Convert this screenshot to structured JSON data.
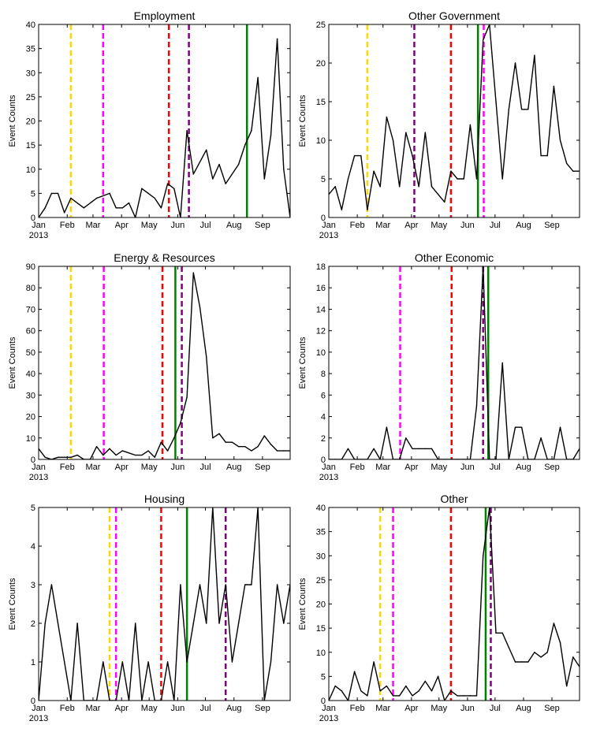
{
  "chart_data": [
    {
      "type": "line",
      "title": "Employment",
      "ylabel": "Event Counts",
      "ylim": [
        0,
        40
      ],
      "yticks": [
        0,
        5,
        10,
        15,
        20,
        25,
        30,
        35,
        40
      ],
      "x_domain": [
        1,
        40
      ],
      "xticks": [
        {
          "x": 1,
          "label": "Jan"
        },
        {
          "x": 5.43,
          "label": "Feb"
        },
        {
          "x": 9.43,
          "label": "Mar"
        },
        {
          "x": 13.86,
          "label": "Apr"
        },
        {
          "x": 18.14,
          "label": "May"
        },
        {
          "x": 22.57,
          "label": "Jun"
        },
        {
          "x": 26.86,
          "label": "Jul"
        },
        {
          "x": 31.29,
          "label": "Aug"
        },
        {
          "x": 35.71,
          "label": "Sep"
        }
      ],
      "year_label": "2013",
      "series": [
        {
          "name": "Event Counts",
          "color": "#000000",
          "x": [
            1,
            2,
            3,
            4,
            5,
            6,
            8,
            10,
            12,
            13,
            14,
            15,
            16,
            17,
            18,
            19,
            20,
            21,
            22,
            23,
            24,
            25,
            27,
            28,
            29,
            30,
            32,
            33,
            34,
            35,
            36,
            37,
            38,
            39,
            40
          ],
          "y": [
            0,
            2,
            5,
            5,
            1,
            4,
            2,
            4,
            5,
            2,
            2,
            3,
            0,
            6,
            5,
            4,
            2,
            7,
            6,
            0,
            18,
            9,
            14,
            8,
            11,
            7,
            11,
            15,
            18,
            29,
            8,
            17,
            37,
            10,
            0
          ]
        }
      ],
      "vlines": [
        {
          "x": 6.0,
          "color": "#FFD700",
          "style": "dashed"
        },
        {
          "x": 11.0,
          "color": "#FF00FF",
          "style": "dashed"
        },
        {
          "x": 21.2,
          "color": "#FF0000",
          "style": "dashed"
        },
        {
          "x": 24.3,
          "color": "#800080",
          "style": "dashed"
        },
        {
          "x": 33.3,
          "color": "#008000",
          "style": "solid"
        }
      ]
    },
    {
      "type": "line",
      "title": "Other Government",
      "ylabel": "Event Counts",
      "ylim": [
        0,
        25
      ],
      "yticks": [
        0,
        5,
        10,
        15,
        20,
        25
      ],
      "x_domain": [
        1,
        40
      ],
      "xticks": [
        {
          "x": 1,
          "label": "Jan"
        },
        {
          "x": 5.43,
          "label": "Feb"
        },
        {
          "x": 9.43,
          "label": "Mar"
        },
        {
          "x": 13.86,
          "label": "Apr"
        },
        {
          "x": 18.14,
          "label": "May"
        },
        {
          "x": 22.57,
          "label": "Jun"
        },
        {
          "x": 26.86,
          "label": "Jul"
        },
        {
          "x": 31.29,
          "label": "Aug"
        },
        {
          "x": 35.71,
          "label": "Sep"
        }
      ],
      "year_label": "2013",
      "series": [
        {
          "name": "Event Counts",
          "color": "#000000",
          "x": [
            1,
            2,
            3,
            4,
            5,
            6,
            7,
            8,
            9,
            10,
            11,
            12,
            13,
            14,
            15,
            16,
            17,
            18,
            19,
            20,
            21,
            22,
            23,
            24,
            25,
            26,
            27,
            28,
            29,
            30,
            31,
            32,
            33,
            34,
            35,
            36,
            37,
            38,
            39,
            40
          ],
          "y": [
            3,
            4,
            1,
            5,
            8,
            8,
            1,
            6,
            4,
            13,
            10,
            4,
            11,
            8,
            4,
            11,
            4,
            3,
            2,
            6,
            5,
            5,
            12,
            5,
            23,
            25,
            15,
            5,
            14,
            20,
            14,
            14,
            21,
            8,
            8,
            17,
            10,
            7,
            6,
            6
          ]
        }
      ],
      "vlines": [
        {
          "x": 7.0,
          "color": "#FFD700",
          "style": "dashed"
        },
        {
          "x": 14.3,
          "color": "#800080",
          "style": "dashed"
        },
        {
          "x": 20.0,
          "color": "#FF0000",
          "style": "dashed"
        },
        {
          "x": 24.2,
          "color": "#008000",
          "style": "solid"
        },
        {
          "x": 25.1,
          "color": "#FF00FF",
          "style": "dashed"
        }
      ]
    },
    {
      "type": "line",
      "title": "Energy & Resources",
      "ylabel": "Event Counts",
      "ylim": [
        0,
        90
      ],
      "yticks": [
        0,
        10,
        20,
        30,
        40,
        50,
        60,
        70,
        80,
        90
      ],
      "x_domain": [
        1,
        40
      ],
      "xticks": [
        {
          "x": 1,
          "label": "Jan"
        },
        {
          "x": 5.43,
          "label": "Feb"
        },
        {
          "x": 9.43,
          "label": "Mar"
        },
        {
          "x": 13.86,
          "label": "Apr"
        },
        {
          "x": 18.14,
          "label": "May"
        },
        {
          "x": 22.57,
          "label": "Jun"
        },
        {
          "x": 26.86,
          "label": "Jul"
        },
        {
          "x": 31.29,
          "label": "Aug"
        },
        {
          "x": 35.71,
          "label": "Sep"
        }
      ],
      "year_label": "2013",
      "series": [
        {
          "name": "Event Counts",
          "color": "#000000",
          "x": [
            1,
            2,
            3,
            4,
            5,
            6,
            7,
            8,
            9,
            10,
            11,
            12,
            13,
            14,
            15,
            16,
            17,
            18,
            19,
            20,
            21,
            22,
            23,
            24,
            25,
            26,
            27,
            28,
            29,
            30,
            31,
            32,
            33,
            34,
            35,
            36,
            37,
            38,
            39,
            40
          ],
          "y": [
            5,
            1,
            0,
            1,
            1,
            1,
            2,
            0,
            0,
            6,
            2,
            5,
            2,
            4,
            3,
            2,
            2,
            4,
            1,
            8,
            4,
            10,
            17,
            29,
            87,
            71,
            48,
            10,
            12,
            8,
            8,
            6,
            6,
            4,
            6,
            11,
            7,
            4,
            4,
            4
          ]
        }
      ],
      "vlines": [
        {
          "x": 6.0,
          "color": "#FFD700",
          "style": "dashed"
        },
        {
          "x": 11.1,
          "color": "#FF00FF",
          "style": "dashed"
        },
        {
          "x": 20.2,
          "color": "#FF0000",
          "style": "dashed"
        },
        {
          "x": 22.2,
          "color": "#008000",
          "style": "solid"
        },
        {
          "x": 23.2,
          "color": "#800080",
          "style": "dashed"
        }
      ]
    },
    {
      "type": "line",
      "title": "Other Economic",
      "ylabel": "Event Counts",
      "ylim": [
        0,
        18
      ],
      "yticks": [
        0,
        2,
        4,
        6,
        8,
        10,
        12,
        14,
        16,
        18
      ],
      "x_domain": [
        1,
        40
      ],
      "xticks": [
        {
          "x": 1,
          "label": "Jan"
        },
        {
          "x": 5.43,
          "label": "Feb"
        },
        {
          "x": 9.43,
          "label": "Mar"
        },
        {
          "x": 13.86,
          "label": "Apr"
        },
        {
          "x": 18.14,
          "label": "May"
        },
        {
          "x": 22.57,
          "label": "Jun"
        },
        {
          "x": 26.86,
          "label": "Jul"
        },
        {
          "x": 31.29,
          "label": "Aug"
        },
        {
          "x": 35.71,
          "label": "Sep"
        }
      ],
      "year_label": "2013",
      "series": [
        {
          "name": "Event Counts",
          "color": "#000000",
          "x": [
            1,
            2,
            3,
            4,
            5,
            6,
            7,
            8,
            9,
            10,
            11,
            12,
            13,
            14,
            15,
            16,
            17,
            18,
            19,
            20,
            21,
            22,
            23,
            24,
            25,
            26,
            27,
            28,
            29,
            30,
            31,
            32,
            33,
            34,
            35,
            36,
            37,
            38,
            39,
            40
          ],
          "y": [
            0,
            0,
            0,
            1,
            0,
            0,
            0,
            1,
            0,
            3,
            0,
            0,
            2,
            1,
            1,
            1,
            1,
            0,
            0,
            0,
            0,
            0,
            0,
            5,
            18,
            0,
            0,
            9,
            0,
            3,
            3,
            0,
            0,
            2,
            0,
            0,
            3,
            0,
            0,
            1
          ]
        }
      ],
      "vlines": [
        {
          "x": 12.1,
          "color": "#FF00FF",
          "style": "dashed"
        },
        {
          "x": 20.1,
          "color": "#FF0000",
          "style": "dashed"
        },
        {
          "x": 25.0,
          "color": "#800080",
          "style": "dashed"
        },
        {
          "x": 25.8,
          "color": "#008000",
          "style": "solid"
        }
      ]
    },
    {
      "type": "line",
      "title": "Housing",
      "ylabel": "Event Counts",
      "ylim": [
        0,
        5
      ],
      "yticks": [
        0,
        1,
        2,
        3,
        4,
        5
      ],
      "x_domain": [
        1,
        40
      ],
      "xticks": [
        {
          "x": 1,
          "label": "Jan"
        },
        {
          "x": 5.43,
          "label": "Feb"
        },
        {
          "x": 9.43,
          "label": "Mar"
        },
        {
          "x": 13.86,
          "label": "Apr"
        },
        {
          "x": 18.14,
          "label": "May"
        },
        {
          "x": 22.57,
          "label": "Jun"
        },
        {
          "x": 26.86,
          "label": "Jul"
        },
        {
          "x": 31.29,
          "label": "Aug"
        },
        {
          "x": 35.71,
          "label": "Sep"
        }
      ],
      "year_label": "2013",
      "series": [
        {
          "name": "Event Counts",
          "color": "#000000",
          "x": [
            1,
            2,
            3,
            4,
            5,
            6,
            7,
            8,
            9,
            10,
            11,
            12,
            13,
            14,
            15,
            16,
            17,
            18,
            19,
            20,
            21,
            22,
            23,
            24,
            25,
            26,
            27,
            28,
            29,
            30,
            31,
            32,
            33,
            34,
            35,
            36,
            37,
            38,
            39,
            40
          ],
          "y": [
            0,
            2,
            3,
            2,
            1,
            0,
            2,
            0,
            0,
            0,
            1,
            0,
            0,
            1,
            0,
            2,
            0,
            1,
            0,
            0,
            1,
            0,
            3,
            1,
            2,
            3,
            2,
            5,
            2,
            3,
            1,
            2,
            3,
            3,
            5,
            0,
            1,
            3,
            2,
            3
          ]
        }
      ],
      "vlines": [
        {
          "x": 12.0,
          "color": "#FFD700",
          "style": "dashed"
        },
        {
          "x": 13.0,
          "color": "#FF00FF",
          "style": "dashed"
        },
        {
          "x": 20.0,
          "color": "#FF0000",
          "style": "dashed"
        },
        {
          "x": 24.0,
          "color": "#008000",
          "style": "solid"
        },
        {
          "x": 30.0,
          "color": "#800080",
          "style": "dashed"
        }
      ]
    },
    {
      "type": "line",
      "title": "Other",
      "ylabel": "Event Counts",
      "ylim": [
        0,
        40
      ],
      "yticks": [
        0,
        5,
        10,
        15,
        20,
        25,
        30,
        35,
        40
      ],
      "x_domain": [
        1,
        40
      ],
      "xticks": [
        {
          "x": 1,
          "label": "Jan"
        },
        {
          "x": 5.43,
          "label": "Feb"
        },
        {
          "x": 9.43,
          "label": "Mar"
        },
        {
          "x": 13.86,
          "label": "Apr"
        },
        {
          "x": 18.14,
          "label": "May"
        },
        {
          "x": 22.57,
          "label": "Jun"
        },
        {
          "x": 26.86,
          "label": "Jul"
        },
        {
          "x": 31.29,
          "label": "Aug"
        },
        {
          "x": 35.71,
          "label": "Sep"
        }
      ],
      "year_label": "2013",
      "series": [
        {
          "name": "Event Counts",
          "color": "#000000",
          "x": [
            1,
            2,
            3,
            4,
            5,
            6,
            7,
            8,
            9,
            10,
            11,
            12,
            13,
            14,
            15,
            16,
            17,
            18,
            19,
            20,
            21,
            22,
            23,
            24,
            25,
            26,
            27,
            28,
            29,
            30,
            31,
            32,
            33,
            34,
            35,
            36,
            37,
            38,
            39,
            40
          ],
          "y": [
            0,
            3,
            2,
            0,
            6,
            2,
            1,
            8,
            2,
            3,
            1,
            1,
            3,
            1,
            2,
            4,
            2,
            5,
            0,
            2,
            1,
            1,
            1,
            1,
            30,
            40,
            14,
            14,
            11,
            8,
            8,
            8,
            10,
            9,
            10,
            16,
            12,
            3,
            9,
            7
          ]
        }
      ],
      "vlines": [
        {
          "x": 9.0,
          "color": "#FFD700",
          "style": "dashed"
        },
        {
          "x": 11.0,
          "color": "#FF00FF",
          "style": "dashed"
        },
        {
          "x": 20.0,
          "color": "#FF0000",
          "style": "dashed"
        },
        {
          "x": 25.4,
          "color": "#008000",
          "style": "solid"
        },
        {
          "x": 26.2,
          "color": "#800080",
          "style": "dashed"
        }
      ]
    }
  ]
}
